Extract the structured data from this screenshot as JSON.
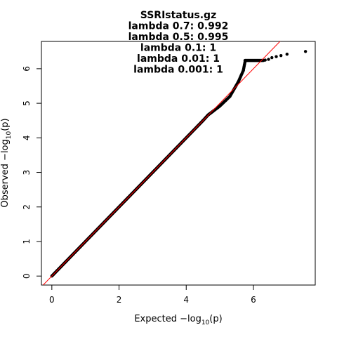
{
  "chart_data": {
    "type": "scatter",
    "title_lines": [
      "SSRIstatus.gz",
      "lambda 0.7: 0.992",
      "lambda 0.5: 0.995",
      "lambda 0.1: 1",
      "lambda 0.01: 1",
      "lambda 0.001: 1"
    ],
    "xlabel": {
      "prefix": "Expected  ",
      "log": "−log",
      "sub": "10",
      "suffix": "(p)"
    },
    "ylabel": {
      "prefix": "Observed  ",
      "log": "−log",
      "sub": "10",
      "suffix": "(p)"
    },
    "xlim": [
      -0.31,
      7.84
    ],
    "ylim": [
      -0.26,
      6.79
    ],
    "xticks": [
      0,
      2,
      4,
      6
    ],
    "yticks": [
      0,
      1,
      2,
      3,
      4,
      5,
      6
    ],
    "reference_line": {
      "slope": 1,
      "intercept": 0,
      "color": "#ff0000"
    },
    "point_color": "#000000",
    "dense_segments": [
      {
        "x": [
          0,
          4.5
        ],
        "y": [
          0,
          4.5
        ]
      },
      {
        "x": [
          4.5,
          4.65
        ],
        "y": [
          4.5,
          4.66
        ]
      },
      {
        "x": [
          4.65,
          5.0
        ],
        "y": [
          4.66,
          4.92
        ]
      },
      {
        "x": [
          5.0,
          5.3
        ],
        "y": [
          4.92,
          5.2
        ]
      },
      {
        "x": [
          5.3,
          5.55
        ],
        "y": [
          5.2,
          5.62
        ]
      },
      {
        "x": [
          5.55,
          5.7
        ],
        "y": [
          5.62,
          5.95
        ]
      },
      {
        "x": [
          5.7,
          5.75
        ],
        "y": [
          5.95,
          6.2
        ]
      }
    ],
    "plateau": {
      "x": [
        5.75,
        6.3
      ],
      "y": 6.24
    },
    "tail_points": [
      {
        "x": 6.35,
        "y": 6.25
      },
      {
        "x": 6.45,
        "y": 6.27
      },
      {
        "x": 6.55,
        "y": 6.32
      },
      {
        "x": 6.68,
        "y": 6.35
      },
      {
        "x": 6.82,
        "y": 6.38
      },
      {
        "x": 7.0,
        "y": 6.42
      },
      {
        "x": 7.55,
        "y": 6.5
      }
    ]
  }
}
